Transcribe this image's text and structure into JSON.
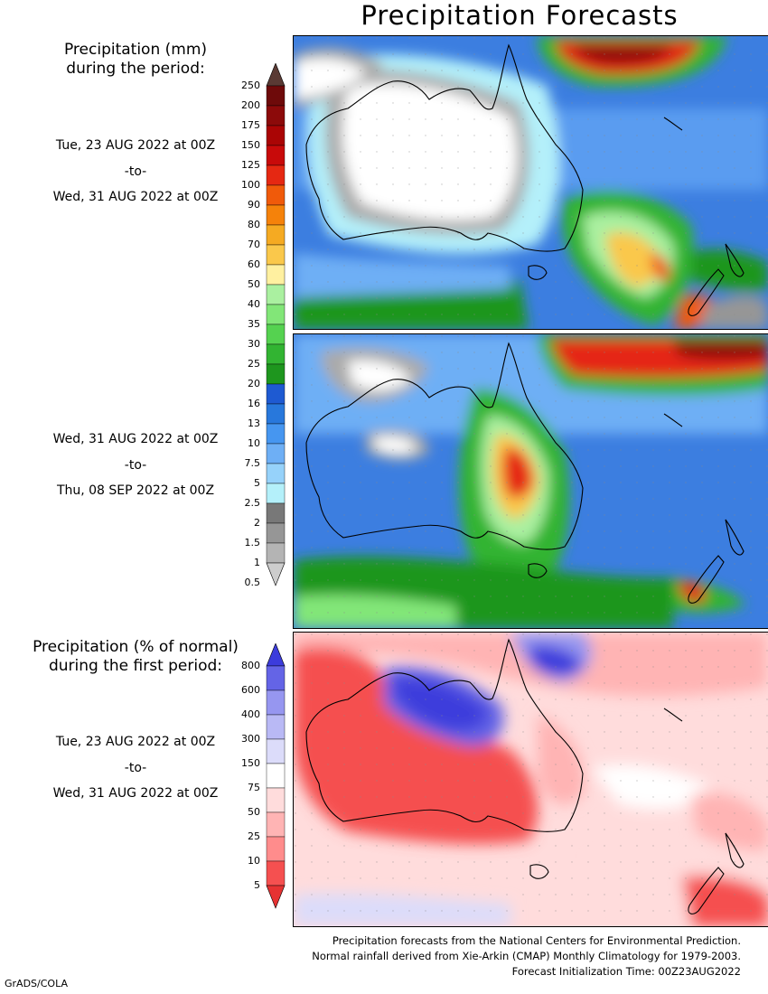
{
  "title": "Precipitation Forecasts",
  "legend_mm": {
    "title_line1": "Precipitation (mm)",
    "title_line2": "during the period:",
    "labels": [
      "250",
      "200",
      "175",
      "150",
      "125",
      "100",
      "90",
      "80",
      "70",
      "60",
      "50",
      "40",
      "35",
      "30",
      "25",
      "20",
      "16",
      "13",
      "10",
      "7.5",
      "5",
      "2.5",
      "2",
      "1.5",
      "1",
      "0.5"
    ],
    "colors": [
      "#5a3a34",
      "#6e0a0a",
      "#8c0a0a",
      "#aa0505",
      "#c80a0a",
      "#e52812",
      "#f05a0a",
      "#f5820a",
      "#f5aa22",
      "#fac84b",
      "#fff0a0",
      "#aaf0a0",
      "#82e678",
      "#55d250",
      "#32b432",
      "#1e961e",
      "#1e5ad2",
      "#2878dc",
      "#4696f0",
      "#6eaff5",
      "#96d2fa",
      "#b4f0fa",
      "#787878",
      "#969696",
      "#b4b4b4",
      "#cdcdcd"
    ]
  },
  "legend_pct": {
    "title_line1": "Precipitation (% of normal)",
    "title_line2": "during the first period:",
    "labels": [
      "800",
      "600",
      "400",
      "300",
      "150",
      "75",
      "50",
      "25",
      "10",
      "5"
    ],
    "colors": [
      "#3c3cdc",
      "#6464e6",
      "#9696f0",
      "#b9b9f5",
      "#dcdcfa",
      "#ffffff",
      "#ffdcdc",
      "#ffb4b4",
      "#ff8c8c",
      "#f55050",
      "#e63232"
    ]
  },
  "periods": [
    {
      "start": "Tue, 23 AUG 2022 at 00Z",
      "sep": "-to-",
      "end": "Wed, 31 AUG 2022 at 00Z"
    },
    {
      "start": "Wed, 31 AUG 2022 at 00Z",
      "sep": "-to-",
      "end": "Thu, 08 SEP 2022 at 00Z"
    },
    {
      "start": "Tue, 23 AUG 2022 at 00Z",
      "sep": "-to-",
      "end": "Wed, 31 AUG 2022 at 00Z"
    }
  ],
  "footer": {
    "line1": "Precipitation forecasts from the National Centers for Environmental Prediction.",
    "line2": "Normal rainfall derived from Xie-Arkin (CMAP) Monthly Climatology for 1979-2003.",
    "line3": "Forecast Initialization Time: 00Z23AUG2022"
  },
  "credit": "GrADS/COLA"
}
